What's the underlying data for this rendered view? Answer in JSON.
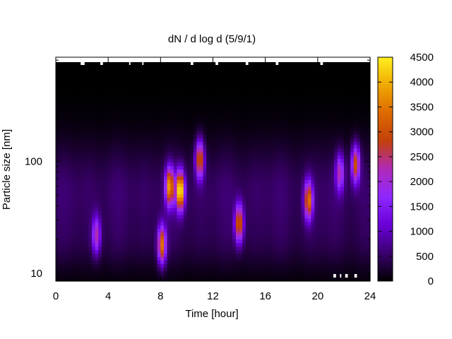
{
  "chart_data": {
    "type": "heatmap",
    "title": "dN / d log d (5/9/1)",
    "xlabel": "Time [hour]",
    "ylabel": "Particle size [nm]",
    "x_axis": {
      "range": [
        0,
        24
      ],
      "ticks": [
        0,
        4,
        8,
        12,
        16,
        20,
        24
      ],
      "tick_labels": [
        "0",
        "4",
        "8",
        "12",
        "16",
        "20",
        "24"
      ]
    },
    "y_axis": {
      "scale": "log",
      "range": [
        8.5,
        850
      ],
      "ticks": [
        10,
        100
      ],
      "tick_labels": [
        "10",
        "100"
      ]
    },
    "colorbar": {
      "range": [
        0,
        4500
      ],
      "ticks": [
        0,
        500,
        1000,
        1500,
        2000,
        2500,
        3000,
        3500,
        4000,
        4500
      ],
      "tick_labels": [
        "0",
        "500",
        "1000",
        "1500",
        "2000",
        "2500",
        "3000",
        "3500",
        "4000",
        "4500"
      ],
      "colormap": [
        "#000000",
        "#3b006e",
        "#6a00d8",
        "#8e28ff",
        "#b02ab8",
        "#c2400c",
        "#dd6a00",
        "#f0a800",
        "#fff020"
      ]
    },
    "background_level": 600,
    "features": [
      {
        "label": "burst",
        "time_center": 3.1,
        "size_center": 22,
        "peak": 1900
      },
      {
        "label": "burst",
        "time_center": 8.1,
        "size_center": 18,
        "peak": 3100
      },
      {
        "label": "burst",
        "time_center": 8.7,
        "size_center": 60,
        "peak": 3400
      },
      {
        "label": "burst",
        "time_center": 9.5,
        "size_center": 55,
        "peak": 4300
      },
      {
        "label": "burst",
        "time_center": 11.0,
        "size_center": 105,
        "peak": 2900
      },
      {
        "label": "burst",
        "time_center": 14.0,
        "size_center": 28,
        "peak": 2900
      },
      {
        "label": "burst",
        "time_center": 19.3,
        "size_center": 45,
        "peak": 3000
      },
      {
        "label": "burst",
        "time_center": 21.7,
        "size_center": 80,
        "peak": 1900
      },
      {
        "label": "burst",
        "time_center": 22.9,
        "size_center": 95,
        "peak": 2700
      }
    ]
  }
}
